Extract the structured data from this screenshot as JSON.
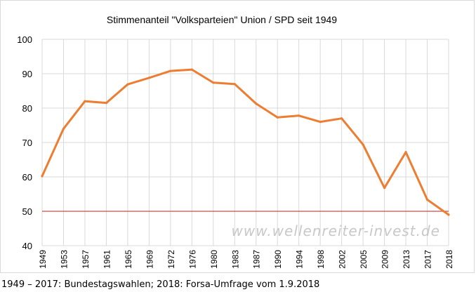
{
  "chart_data": {
    "type": "line",
    "title": "Stimmenanteil \"Volksparteien\" Union / SPD seit 1949",
    "xlabel": "",
    "ylabel": "",
    "x": [
      "1949",
      "1953",
      "1957",
      "1961",
      "1965",
      "1969",
      "1972",
      "1976",
      "1980",
      "1983",
      "1987",
      "1990",
      "1994",
      "1998",
      "2002",
      "2005",
      "2009",
      "2013",
      "2017",
      "2018"
    ],
    "series": [
      {
        "values": [
          60.2,
          74.0,
          82.0,
          81.5,
          86.9,
          88.8,
          90.8,
          91.2,
          87.4,
          87.0,
          81.3,
          77.3,
          77.8,
          76.0,
          77.0,
          69.4,
          56.8,
          67.2,
          53.4,
          49.0
        ]
      }
    ],
    "reference_line": {
      "value": 50,
      "color": "#c0504d"
    },
    "ylim": [
      40,
      100
    ],
    "yticks": [
      40,
      50,
      60,
      70,
      80,
      90,
      100
    ],
    "grid": true,
    "legend": "none",
    "line_color": "#ed7d31",
    "watermark": "www.wellenreiter-invest.de"
  },
  "footnote": "1949 – 2017: Bundestagswahlen; 2018: Forsa-Umfrage vom 1.9.2018"
}
